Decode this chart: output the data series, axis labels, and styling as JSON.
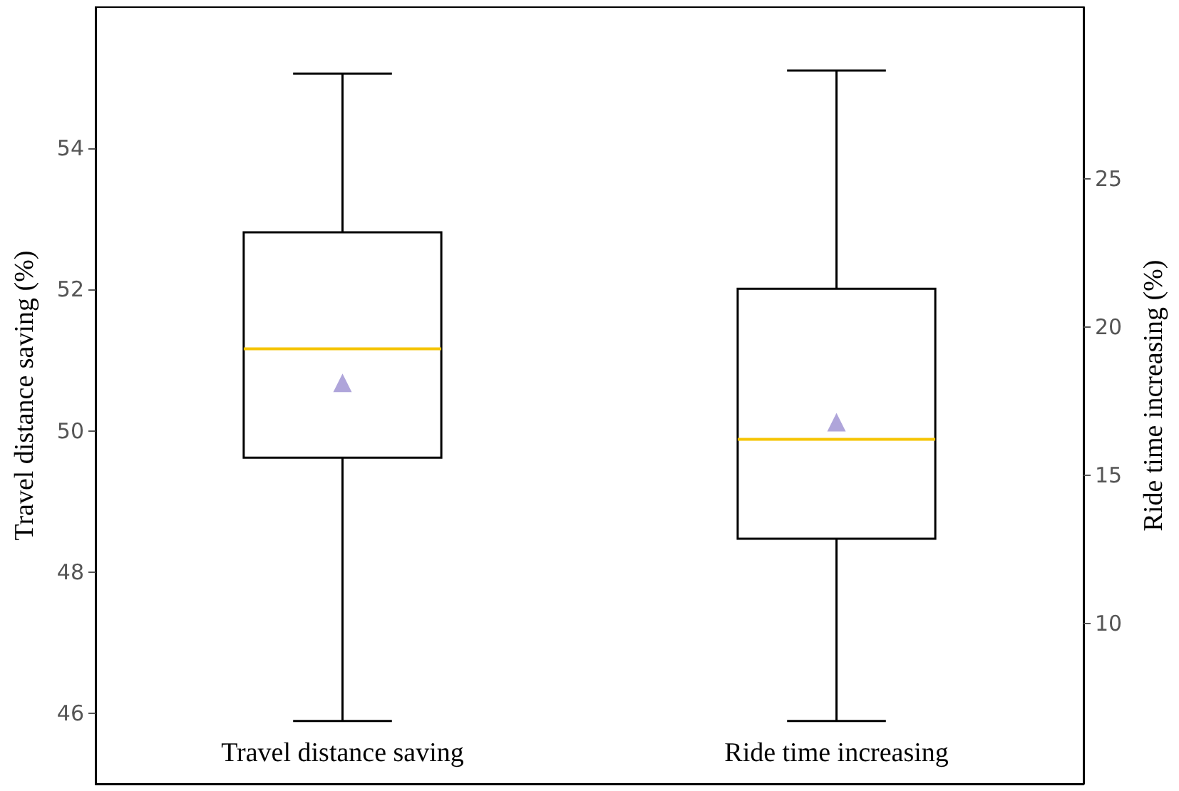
{
  "chart_data": {
    "type": "box",
    "categories": [
      "Travel distance saving",
      "Ride time increasing"
    ],
    "ylabel": "Travel distance saving (%)",
    "y2label": "Ride time increasing (%)",
    "ylim": [
      45,
      56
    ],
    "yticks": [
      46,
      48,
      50,
      52,
      54
    ],
    "y2lim": [
      4.6,
      30.8
    ],
    "y2ticks": [
      10,
      15,
      20,
      25
    ],
    "grid": false,
    "marker": "triangle",
    "series": [
      {
        "color": "#000000",
        "boxes": [
          {
            "low": 45.89,
            "q1": 49.62,
            "median": 51.16,
            "q3": 52.81,
            "high": 55.06
          },
          null
        ]
      },
      {
        "color": "#000000",
        "axis": "y2",
        "boxes": [
          null,
          {
            "low": 6.72,
            "q1": 12.87,
            "median": 16.22,
            "q3": 21.3,
            "high": 28.66
          }
        ]
      },
      {
        "type": "scatter",
        "color": "#9b8fd1",
        "x": [
          "Travel distance saving"
        ],
        "values": [
          50.68
        ]
      },
      {
        "type": "scatter",
        "color": "#9b8fd1",
        "axis": "y2",
        "x": [
          "Ride time increasing"
        ],
        "values": [
          16.8
        ]
      }
    ]
  }
}
